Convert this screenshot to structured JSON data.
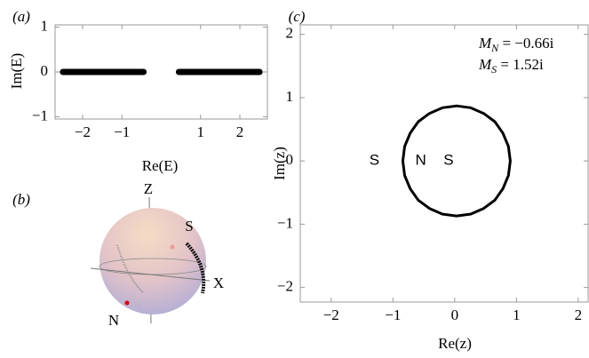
{
  "chart_data": [
    {
      "type": "line",
      "panel_label": "(a)",
      "x_label": "Re(E)",
      "y_label": "Im(E)",
      "x": [
        -2.5,
        -0.45,
        0,
        0.45,
        2.5
      ],
      "series": [
        {
          "color": "#000000",
          "values": [
            0,
            0,
            null,
            0,
            0
          ]
        }
      ],
      "xlim": [
        -2.7,
        2.7
      ],
      "ylim": [
        -1.05,
        1.05
      ],
      "xticks": [
        {
          "value": -2,
          "label": "−2"
        },
        {
          "value": -1,
          "label": "−1"
        },
        1,
        2
      ],
      "yticks": [
        {
          "value": -1,
          "label": "−1"
        },
        0,
        1
      ]
    },
    {
      "type": "sphere",
      "panel_label": "(b)",
      "axis_labels": [
        "Z",
        "X"
      ],
      "point_labels": [
        "S",
        "N"
      ]
    },
    {
      "type": "line",
      "panel_label": "(c)",
      "x_label": "Re(z)",
      "y_label": "Im(z)",
      "x": [
        0.9,
        0.87,
        0.78,
        0.65,
        0.47,
        0.26,
        0.03,
        -0.2,
        -0.41,
        -0.59,
        -0.72,
        -0.81,
        -0.84,
        -0.81,
        -0.72,
        -0.59,
        -0.41,
        -0.2,
        0.03,
        0.26,
        0.47,
        0.65,
        0.78,
        0.87,
        0.9
      ],
      "series": [
        {
          "color": "#000000",
          "values": [
            0,
            0.23,
            0.44,
            0.62,
            0.75,
            0.84,
            0.87,
            0.84,
            0.75,
            0.62,
            0.44,
            0.23,
            0,
            -0.23,
            -0.44,
            -0.62,
            -0.75,
            -0.84,
            -0.87,
            -0.84,
            -0.75,
            -0.62,
            -0.44,
            -0.23,
            0
          ]
        }
      ],
      "xlim": [
        -2.5,
        2.16
      ],
      "ylim": [
        -2.23,
        2.15
      ],
      "xticks": [
        {
          "value": -2,
          "label": "−2"
        },
        {
          "value": -1,
          "label": "−1"
        },
        0,
        1,
        2
      ],
      "yticks": [
        {
          "value": -2,
          "label": "−2"
        },
        {
          "value": -1,
          "label": "−1"
        },
        0,
        1,
        2
      ],
      "point_labels": [
        {
          "text": "S",
          "x": -1.3,
          "y": 0
        },
        {
          "text": "N",
          "x": -0.55,
          "y": 0
        },
        {
          "text": "S",
          "x": -0.1,
          "y": 0
        }
      ],
      "annotations": [
        {
          "symbol": "M",
          "subscript": "N",
          "text": " = −0.66i"
        },
        {
          "symbol": "M",
          "subscript": "S",
          "text": " = 1.52i"
        }
      ]
    }
  ]
}
